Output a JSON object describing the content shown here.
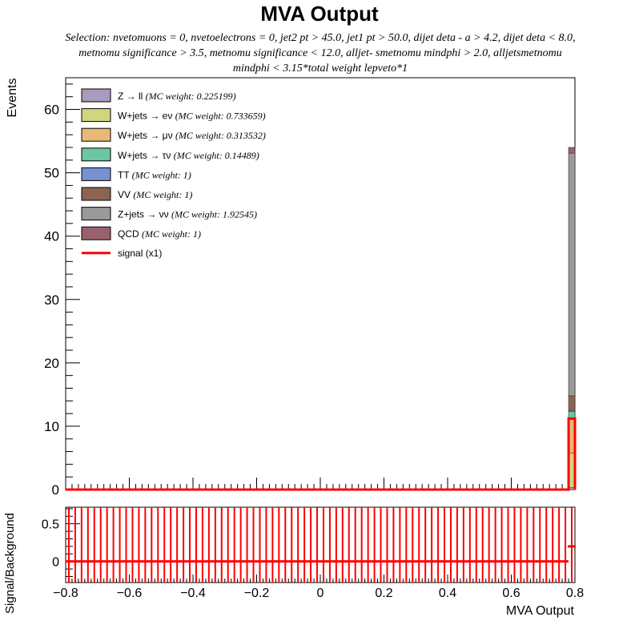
{
  "chart_data": [
    {
      "type": "bar",
      "stacked": true,
      "title": "MVA Output",
      "subtitle": "Selection: nvetomuons = 0, nvetoelectrons = 0, jet2 pt > 45.0, jet1 pt > 50.0, dijet deta - a > 4.2, dijet deta < 8.0, metnomu significance > 3.5, metnomu significance < 12.0, alljet- smetnomu mindphi > 2.0, alljetsmetnomu mindphi < 3.15*total weight lepveto*1",
      "ylabel": "Events",
      "xlabel": "",
      "xlim": [
        -0.8,
        0.8
      ],
      "ylim": [
        0,
        65
      ],
      "yticks": [
        0,
        10,
        20,
        30,
        40,
        50,
        60
      ],
      "legend_position": "top-left",
      "bin": [
        0.78,
        0.8
      ],
      "series": [
        {
          "name": "Z → ll",
          "weight": "(MC weight: 0.225199)",
          "color": "#a99bbd",
          "value": 0.3
        },
        {
          "name": "W+jets → eν",
          "weight": "(MC weight: 0.733659)",
          "color": "#d2d57f",
          "value": 5.5
        },
        {
          "name": "W+jets → μν",
          "weight": "(MC weight: 0.313532)",
          "color": "#e8b878",
          "value": 5.3
        },
        {
          "name": "W+jets → τν",
          "weight": "(MC weight: 0.14489)",
          "color": "#6cc6a2",
          "value": 1.2
        },
        {
          "name": "TT",
          "weight": "(MC weight: 1)",
          "color": "#7691d1",
          "value": 0.2
        },
        {
          "name": "VV",
          "weight": "(MC weight: 1)",
          "color": "#8b6452",
          "value": 2.3
        },
        {
          "name": "Z+jets → νν",
          "weight": "(MC weight: 1.92545)",
          "color": "#999999",
          "value": 38.3
        },
        {
          "name": "QCD",
          "weight": "(MC weight: 1)",
          "color": "#99616c",
          "value": 0.9
        }
      ],
      "signal": {
        "name": "signal (x1)",
        "color": "#ff0000",
        "value": 11.2
      }
    },
    {
      "type": "scatter",
      "ylabel": "Signal/Background",
      "xlabel": "MVA Output",
      "xlim": [
        -0.8,
        0.8
      ],
      "xticks": [
        -0.8,
        -0.6,
        -0.4,
        -0.2,
        0,
        0.2,
        0.4,
        0.6,
        0.8
      ],
      "ylim": [
        -0.28,
        0.72
      ],
      "yticks": [
        0,
        0.5
      ],
      "color": "#ff0000",
      "bin_width": 0.02,
      "points": {
        "y": 0,
        "err": 0.72,
        "first_center": -0.79,
        "last_center": 0.77
      },
      "last_bin": {
        "x": 0.79,
        "y": 0.2,
        "err": 0.72
      }
    }
  ]
}
